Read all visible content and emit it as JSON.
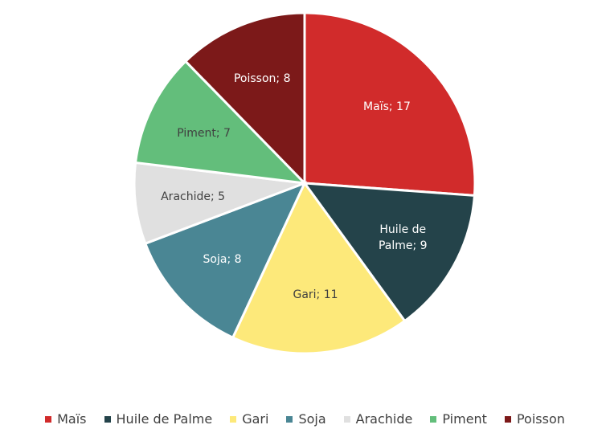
{
  "chart_data": {
    "type": "pie",
    "categories": [
      "Maïs",
      "Huile de Palme",
      "Gari",
      "Soja",
      "Arachide",
      "Piment",
      "Poisson"
    ],
    "values": [
      17,
      9,
      11,
      8,
      5,
      7,
      8
    ],
    "value_labels": [
      "Maïs; 17",
      "Huile de Palme; 9",
      "Gari; 11",
      "Soja; 8",
      "Arachide; 5",
      "Piment; 7",
      "Poisson; 8"
    ],
    "colors": [
      "#d12b2b",
      "#24434a",
      "#fde97a",
      "#4a8694",
      "#e0e0e0",
      "#63be7b",
      "#7c1919"
    ],
    "legend": "bottom"
  }
}
